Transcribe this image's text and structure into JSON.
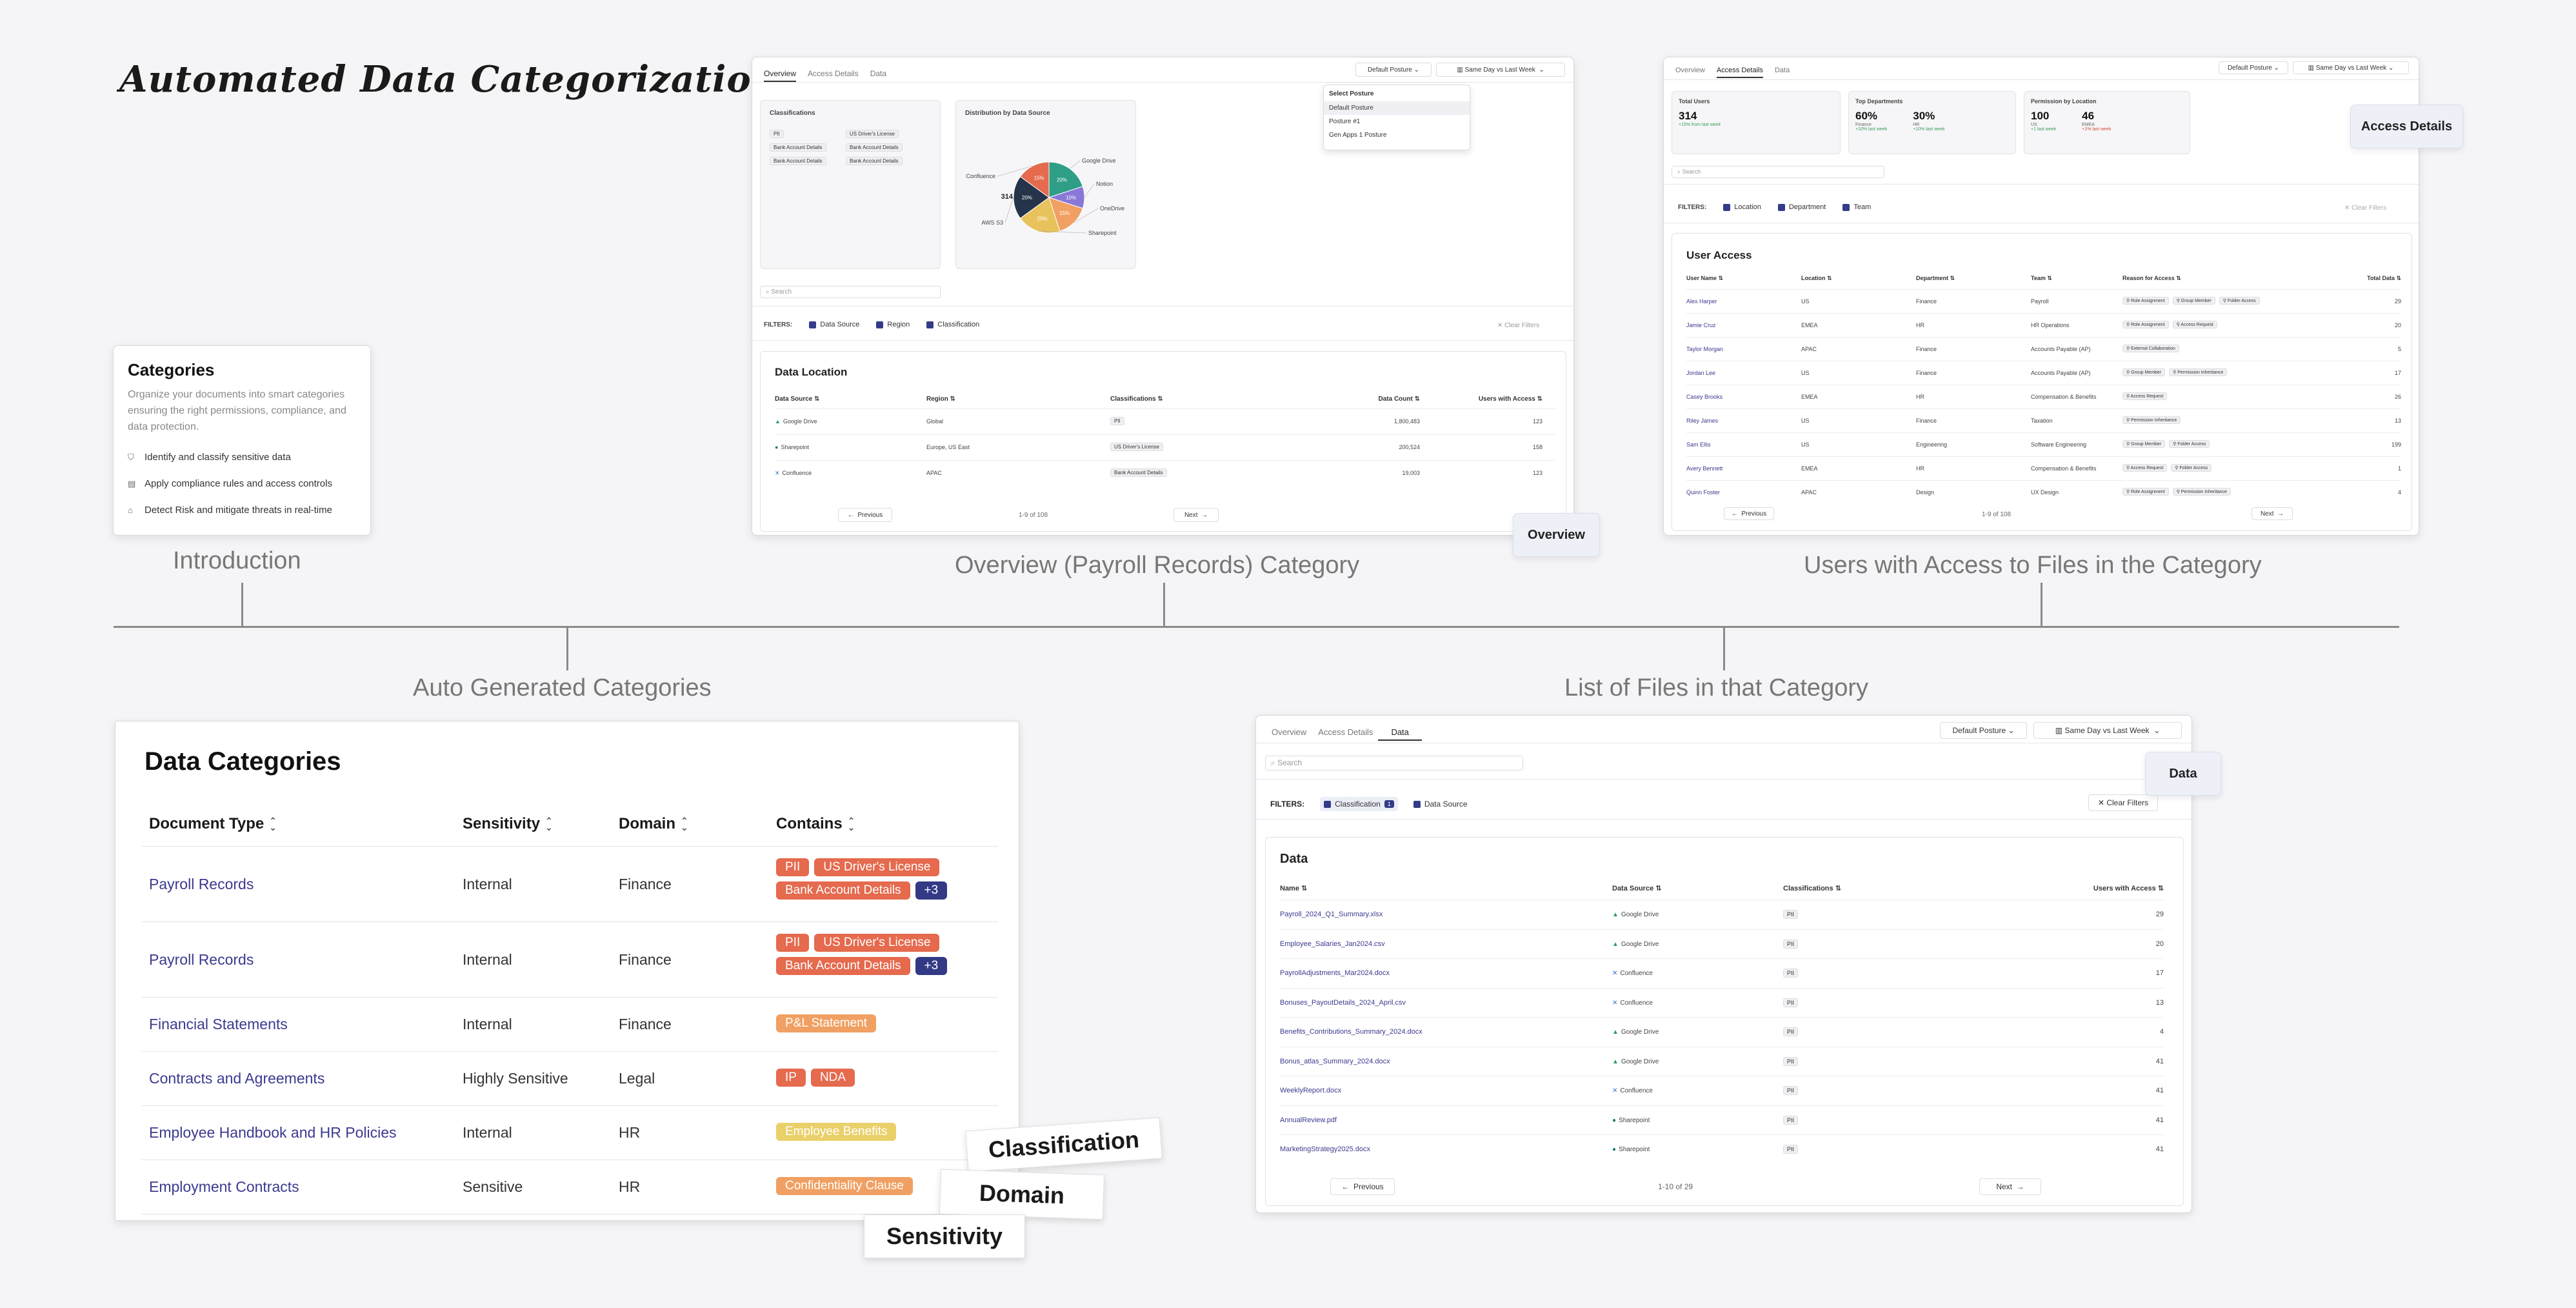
{
  "title": "Automated Data Categorization",
  "captions": {
    "introduction": "Introduction",
    "overview": "Overview (Payroll Records) Category",
    "users_access": "Users with Access to Files in the Category",
    "auto_generated": "Auto Generated Categories",
    "list_files": "List of Files in that Category"
  },
  "intro": {
    "title": "Categories",
    "description": "Organize your documents into smart categories ensuring the right permissions, compliance, and data protection.",
    "items": [
      {
        "icon": "shield-icon",
        "label": "Identify and classify sensitive data"
      },
      {
        "icon": "document-icon",
        "label": "Apply compliance rules and access controls"
      },
      {
        "icon": "lock-icon",
        "label": "Detect Risk and mitigate threats in real-time"
      }
    ]
  },
  "data_categories": {
    "title": "Data Categories",
    "headers": [
      "Document Type",
      "Sensitivity",
      "Domain",
      "Contains"
    ],
    "rows": [
      {
        "doc": "Payroll Records",
        "sens": "Internal",
        "domain": "Finance",
        "tags": [
          {
            "t": "PII",
            "c": "red"
          },
          {
            "t": "US Driver's License",
            "c": "red"
          },
          {
            "t": "Bank Account Details",
            "c": "red"
          },
          {
            "t": "+3",
            "c": "navy"
          }
        ]
      },
      {
        "doc": "Payroll Records",
        "sens": "Internal",
        "domain": "Finance",
        "tags": [
          {
            "t": "PII",
            "c": "red"
          },
          {
            "t": "US Driver's License",
            "c": "red"
          },
          {
            "t": "Bank Account Details",
            "c": "red"
          },
          {
            "t": "+3",
            "c": "navy"
          }
        ]
      },
      {
        "doc": "Financial Statements",
        "sens": "Internal",
        "domain": "Finance",
        "tags": [
          {
            "t": "P&L Statement",
            "c": "orange"
          }
        ]
      },
      {
        "doc": "Contracts and Agreements",
        "sens": "Highly Sensitive",
        "domain": "Legal",
        "tags": [
          {
            "t": "IP",
            "c": "red"
          },
          {
            "t": "NDA",
            "c": "red"
          }
        ]
      },
      {
        "doc": "Employee Handbook and HR Policies",
        "sens": "Internal",
        "domain": "HR",
        "tags": [
          {
            "t": "Employee Benefits",
            "c": "yellow"
          }
        ]
      },
      {
        "doc": "Employment Contracts",
        "sens": "Sensitive",
        "domain": "HR",
        "tags": [
          {
            "t": "Confidentiality Clause",
            "c": "orange"
          }
        ]
      }
    ]
  },
  "floating_labels": {
    "classification": "Classification",
    "domain": "Domain",
    "sensitivity": "Sensitivity",
    "overview": "Overview",
    "access_details": "Access Details",
    "data": "Data"
  },
  "overview_screen": {
    "tabs": [
      "Overview",
      "Access Details",
      "Data"
    ],
    "posture_btn": "Default Posture",
    "compare_btn": "Same Day vs Last Week",
    "dropdown": {
      "header": "Select Posture",
      "options": [
        "Default Posture",
        "Posture #1",
        "Gen Apps 1 Posture"
      ]
    },
    "classifications_title": "Classifications",
    "classifications": [
      "PII",
      "US Driver's License",
      "Bank Account Details",
      "Bank Account Details",
      "Bank Account Details",
      "Bank Account Details"
    ],
    "distribution_title": "Distribution by Data Source",
    "pie_center": "314",
    "pie": [
      {
        "label": "Google Drive",
        "value": 20,
        "pct": "20%",
        "color": "#2f9e86"
      },
      {
        "label": "Notion",
        "value": 10,
        "pct": "10%",
        "color": "#8a78d8"
      },
      {
        "label": "OneDrive",
        "value": 15,
        "pct": "15%",
        "color": "#f0a062"
      },
      {
        "label": "Sharepoint",
        "value": 20,
        "pct": "20%",
        "color": "#e8c25c"
      },
      {
        "label": "AWS S3",
        "value": 20,
        "pct": "20%",
        "color": "#25344a"
      },
      {
        "label": "Confluence",
        "value": 15,
        "pct": "15%",
        "color": "#e56a4e"
      }
    ],
    "search_placeholder": "Search",
    "filters_label": "FILTERS:",
    "filters": [
      "Data Source",
      "Region",
      "Classification"
    ],
    "clear": "Clear Filters",
    "table_title": "Data Location",
    "headers": [
      "Data Source",
      "Region",
      "Classifications",
      "Data Count",
      "Users with Access"
    ],
    "rows": [
      {
        "src": "Google Drive",
        "region": "Global",
        "cls": "PII",
        "count": "1,800,483",
        "users": "123"
      },
      {
        "src": "Sharepoint",
        "region": "Europe, US East",
        "cls": "US Driver's License",
        "count": "200,524",
        "users": "158"
      },
      {
        "src": "Confluence",
        "region": "APAC",
        "cls": "Bank Account Details",
        "count": "19,003",
        "users": "123"
      }
    ],
    "prev": "Previous",
    "next": "Next",
    "pagination": "1-9 of 108"
  },
  "access_screen": {
    "tabs": [
      "Overview",
      "Access Details",
      "Data"
    ],
    "posture_btn": "Default Posture",
    "compare_btn": "Same Day vs Last Week",
    "stats": [
      {
        "title": "Total Users",
        "values": [
          {
            "v": "314",
            "l": "",
            "d": "+15% from last week",
            "dc": "#3a9a5a"
          }
        ]
      },
      {
        "title": "Top Departments",
        "values": [
          {
            "v": "60%",
            "l": "Finance",
            "d": "+10% last week",
            "dc": "#3a9a5a"
          },
          {
            "v": "30%",
            "l": "HR",
            "d": "+10% last week",
            "dc": "#3a9a5a"
          }
        ]
      },
      {
        "title": "Permission by Location",
        "values": [
          {
            "v": "100",
            "l": "US",
            "d": "+1 last week",
            "dc": "#3a9a5a"
          },
          {
            "v": "46",
            "l": "EMEA",
            "d": "+1% last week",
            "dc": "#d04a3a"
          }
        ]
      }
    ],
    "search_placeholder": "Search",
    "filters_label": "FILTERS:",
    "filters": [
      "Location",
      "Department",
      "Team"
    ],
    "clear": "Clear Filters",
    "table_title": "User Access",
    "headers": [
      "User Name",
      "Location",
      "Department",
      "Team",
      "Reason for Access",
      "Total Data"
    ],
    "rows": [
      {
        "name": "Alex Harper",
        "loc": "US",
        "dept": "Finance",
        "team": "Payroll",
        "reasons": [
          "Role Assignment",
          "Group Member",
          "Folder Access"
        ],
        "total": "29"
      },
      {
        "name": "Jamie Cruz",
        "loc": "EMEA",
        "dept": "HR",
        "team": "HR Operations",
        "reasons": [
          "Role Assignment",
          "Access Request"
        ],
        "total": "20"
      },
      {
        "name": "Taylor Morgan",
        "loc": "APAC",
        "dept": "Finance",
        "team": "Accounts Payable (AP)",
        "reasons": [
          "External Collaboration"
        ],
        "total": "5"
      },
      {
        "name": "Jordan Lee",
        "loc": "US",
        "dept": "Finance",
        "team": "Accounts Payable (AP)",
        "reasons": [
          "Group Member",
          "Permission Inheritance"
        ],
        "total": "17"
      },
      {
        "name": "Casey Brooks",
        "loc": "EMEA",
        "dept": "HR",
        "team": "Compensation & Benefits",
        "reasons": [
          "Access Request"
        ],
        "total": "26"
      },
      {
        "name": "Riley James",
        "loc": "US",
        "dept": "Finance",
        "team": "Taxation",
        "reasons": [
          "Permission Inheritance"
        ],
        "total": "13"
      },
      {
        "name": "Sam Ellis",
        "loc": "US",
        "dept": "Engineering",
        "team": "Software Engineering",
        "reasons": [
          "Group Member",
          "Folder Access"
        ],
        "total": "199"
      },
      {
        "name": "Avery Bennett",
        "loc": "EMEA",
        "dept": "HR",
        "team": "Compensation & Benefits",
        "reasons": [
          "Access Request",
          "Folder Access"
        ],
        "total": "1"
      },
      {
        "name": "Quinn Foster",
        "loc": "APAC",
        "dept": "Design",
        "team": "UX Design",
        "reasons": [
          "Role Assignment",
          "Permission Inheritance"
        ],
        "total": "4"
      }
    ],
    "prev": "Previous",
    "next": "Next",
    "pagination": "1-9 of 108"
  },
  "files_screen": {
    "tabs": [
      "Overview",
      "Access Details",
      "Data"
    ],
    "posture_btn": "Default Posture",
    "compare_btn": "Same Day vs Last Week",
    "search_placeholder": "Search",
    "filters_label": "FILTERS:",
    "filters": [
      "Classification",
      "Data Source"
    ],
    "filter_count": "1",
    "clear": "Clear Filters",
    "table_title": "Data",
    "headers": [
      "Name",
      "Data Source",
      "Classifications",
      "Users with Access"
    ],
    "rows": [
      {
        "name": "Payroll_2024_Q1_Summary.xlsx",
        "src": "Google Drive",
        "cls": "PII",
        "users": "29"
      },
      {
        "name": "Employee_Salaries_Jan2024.csv",
        "src": "Google Drive",
        "cls": "PII",
        "users": "20"
      },
      {
        "name": "PayrollAdjustments_Mar2024.docx",
        "src": "Confluence",
        "cls": "PII",
        "users": "17"
      },
      {
        "name": "Bonuses_PayoutDetails_2024_April.csv",
        "src": "Confluence",
        "cls": "PII",
        "users": "13"
      },
      {
        "name": "Benefits_Contributions_Summary_2024.docx",
        "src": "Google Drive",
        "cls": "PII",
        "users": "4"
      },
      {
        "name": "Bonus_atlas_Summary_2024.docx",
        "src": "Google Drive",
        "cls": "PII",
        "users": "41"
      },
      {
        "name": "WeeklyReport.docx",
        "src": "Confluence",
        "cls": "PII",
        "users": "41"
      },
      {
        "name": "AnnualReview.pdf",
        "src": "Sharepoint",
        "cls": "PII",
        "users": "41"
      },
      {
        "name": "MarketingStrategy2025.docx",
        "src": "Sharepoint",
        "cls": "PII",
        "users": "41"
      }
    ],
    "prev": "Previous",
    "next": "Next",
    "pagination": "1-10 of 29"
  },
  "colors": {
    "accent": "#3b3a8f",
    "navy": "#333a85",
    "red": "#e56a4e",
    "orange": "#f0a062",
    "yellow": "#ead06a"
  }
}
